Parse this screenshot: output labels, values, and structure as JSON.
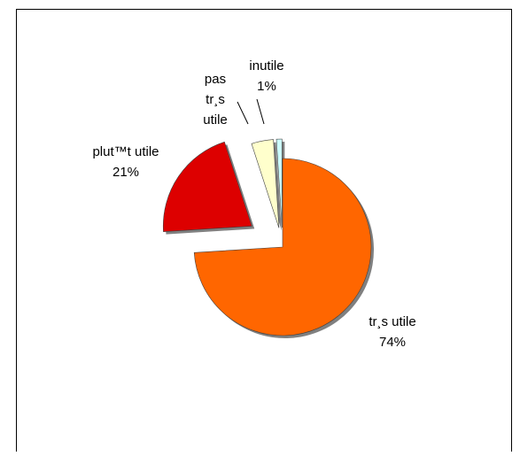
{
  "chart_data": {
    "type": "pie",
    "exploded": true,
    "shadow": true,
    "slices": [
      {
        "name": "très utile",
        "label_line1": "tr¸s utile",
        "label_line2": "74%",
        "value": 74,
        "color": "#ff6600"
      },
      {
        "name": "plutôt utile",
        "label_line1": "plut™t utile",
        "label_line2": "21%",
        "value": 21,
        "color": "#dd0000"
      },
      {
        "name": "pas très utile",
        "label_line1": "pas",
        "label_line2": "tr¸s",
        "label_line3": "utile",
        "value": 4,
        "color": "#ffffcc"
      },
      {
        "name": "inutile",
        "label_line1": "inutile",
        "label_line2": "1%",
        "value": 1,
        "color": "#ccffff"
      }
    ]
  }
}
